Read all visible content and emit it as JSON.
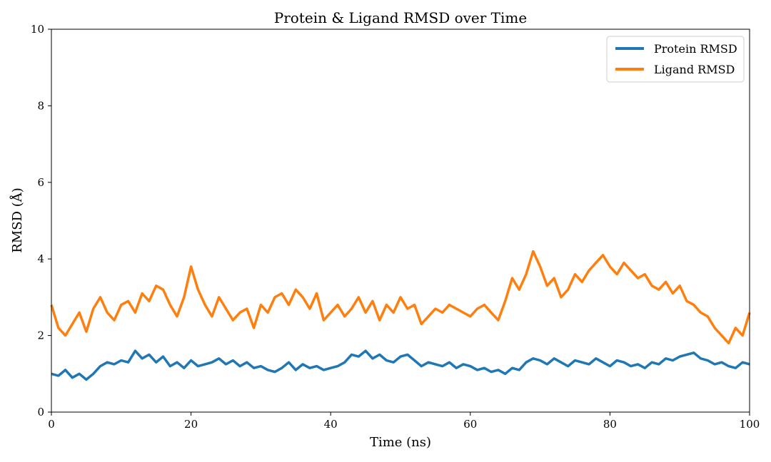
{
  "chart_data": {
    "type": "line",
    "title": "Protein & Ligand RMSD over Time",
    "xlabel": "Time (ns)",
    "ylabel": "RMSD (Å)",
    "xlim": [
      0,
      100
    ],
    "ylim": [
      0,
      10
    ],
    "xticks": [
      0,
      20,
      40,
      60,
      80,
      100
    ],
    "yticks": [
      0,
      2,
      4,
      6,
      8,
      10
    ],
    "grid": false,
    "legend_position": "top-right",
    "x": [
      0,
      1,
      2,
      3,
      4,
      5,
      6,
      7,
      8,
      9,
      10,
      11,
      12,
      13,
      14,
      15,
      16,
      17,
      18,
      19,
      20,
      21,
      22,
      23,
      24,
      25,
      26,
      27,
      28,
      29,
      30,
      31,
      32,
      33,
      34,
      35,
      36,
      37,
      38,
      39,
      40,
      41,
      42,
      43,
      44,
      45,
      46,
      47,
      48,
      49,
      50,
      51,
      52,
      53,
      54,
      55,
      56,
      57,
      58,
      59,
      60,
      61,
      62,
      63,
      64,
      65,
      66,
      67,
      68,
      69,
      70,
      71,
      72,
      73,
      74,
      75,
      76,
      77,
      78,
      79,
      80,
      81,
      82,
      83,
      84,
      85,
      86,
      87,
      88,
      89,
      90,
      91,
      92,
      93,
      94,
      95,
      96,
      97,
      98,
      99,
      100
    ],
    "series": [
      {
        "name": "Protein RMSD",
        "color": "#1f77b4",
        "values": [
          1.0,
          0.95,
          1.1,
          0.9,
          1.0,
          0.85,
          1.0,
          1.2,
          1.3,
          1.25,
          1.35,
          1.3,
          1.6,
          1.4,
          1.5,
          1.3,
          1.45,
          1.2,
          1.3,
          1.15,
          1.35,
          1.2,
          1.25,
          1.3,
          1.4,
          1.25,
          1.35,
          1.2,
          1.3,
          1.15,
          1.2,
          1.1,
          1.05,
          1.15,
          1.3,
          1.1,
          1.25,
          1.15,
          1.2,
          1.1,
          1.15,
          1.2,
          1.3,
          1.5,
          1.45,
          1.6,
          1.4,
          1.5,
          1.35,
          1.3,
          1.45,
          1.5,
          1.35,
          1.2,
          1.3,
          1.25,
          1.2,
          1.3,
          1.15,
          1.25,
          1.2,
          1.1,
          1.15,
          1.05,
          1.1,
          1.0,
          1.15,
          1.1,
          1.3,
          1.4,
          1.35,
          1.25,
          1.4,
          1.3,
          1.2,
          1.35,
          1.3,
          1.25,
          1.4,
          1.3,
          1.2,
          1.35,
          1.3,
          1.2,
          1.25,
          1.15,
          1.3,
          1.25,
          1.4,
          1.35,
          1.45,
          1.5,
          1.55,
          1.4,
          1.35,
          1.25,
          1.3,
          1.2,
          1.15,
          1.3,
          1.25
        ]
      },
      {
        "name": "Ligand RMSD",
        "color": "#ff7f0e",
        "values": [
          2.8,
          2.2,
          2.0,
          2.3,
          2.6,
          2.1,
          2.7,
          3.0,
          2.6,
          2.4,
          2.8,
          2.9,
          2.6,
          3.1,
          2.9,
          3.3,
          3.2,
          2.8,
          2.5,
          3.0,
          3.8,
          3.2,
          2.8,
          2.5,
          3.0,
          2.7,
          2.4,
          2.6,
          2.7,
          2.2,
          2.8,
          2.6,
          3.0,
          3.1,
          2.8,
          3.2,
          3.0,
          2.7,
          3.1,
          2.4,
          2.6,
          2.8,
          2.5,
          2.7,
          3.0,
          2.6,
          2.9,
          2.4,
          2.8,
          2.6,
          3.0,
          2.7,
          2.8,
          2.3,
          2.5,
          2.7,
          2.6,
          2.8,
          2.7,
          2.6,
          2.5,
          2.7,
          2.8,
          2.6,
          2.4,
          2.9,
          3.5,
          3.2,
          3.6,
          4.2,
          3.8,
          3.3,
          3.5,
          3.0,
          3.2,
          3.6,
          3.4,
          3.7,
          3.9,
          4.1,
          3.8,
          3.6,
          3.9,
          3.7,
          3.5,
          3.6,
          3.3,
          3.2,
          3.4,
          3.1,
          3.3,
          2.9,
          2.8,
          2.6,
          2.5,
          2.2,
          2.0,
          1.8,
          2.2,
          2.0,
          2.6
        ]
      }
    ]
  }
}
